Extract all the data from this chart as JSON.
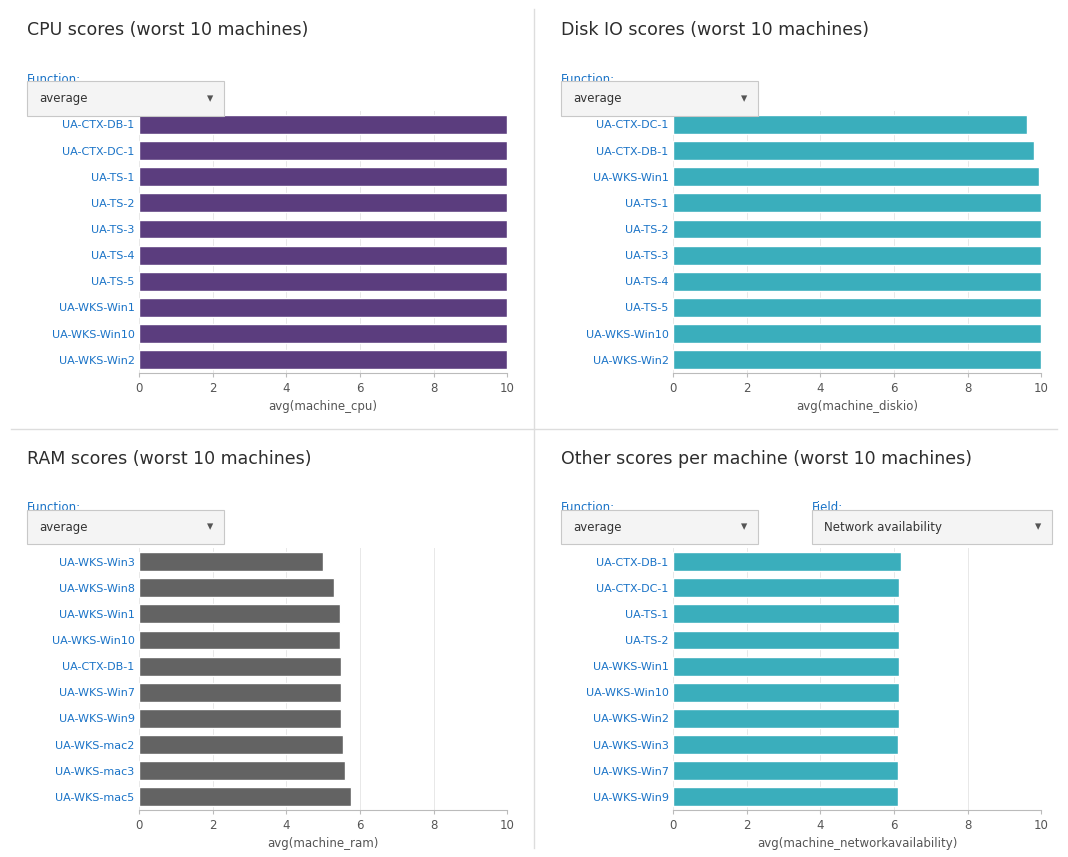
{
  "cpu": {
    "title": "CPU scores (worst 10 machines)",
    "xlabel": "avg(machine_cpu)",
    "function_label": "Function:",
    "dropdown_text": "average",
    "categories": [
      "UA-WKS-Win2",
      "UA-WKS-Win10",
      "UA-WKS-Win1",
      "UA-TS-5",
      "UA-TS-4",
      "UA-TS-3",
      "UA-TS-2",
      "UA-TS-1",
      "UA-CTX-DC-1",
      "UA-CTX-DB-1"
    ],
    "values": [
      10,
      10,
      10,
      10,
      10,
      10,
      10,
      10,
      10,
      10
    ],
    "color": "#5b3d7e",
    "xlim": [
      0,
      10
    ],
    "xticks": [
      0,
      2,
      4,
      6,
      8,
      10
    ]
  },
  "diskio": {
    "title": "Disk IO scores (worst 10 machines)",
    "xlabel": "avg(machine_diskio)",
    "function_label": "Function:",
    "dropdown_text": "average",
    "categories": [
      "UA-WKS-Win2",
      "UA-WKS-Win10",
      "UA-TS-5",
      "UA-TS-4",
      "UA-TS-3",
      "UA-TS-2",
      "UA-TS-1",
      "UA-WKS-Win1",
      "UA-CTX-DB-1",
      "UA-CTX-DC-1"
    ],
    "values": [
      10,
      10,
      10,
      10,
      10,
      10,
      10,
      9.95,
      9.8,
      9.6
    ],
    "color": "#3aaebc",
    "xlim": [
      0,
      10
    ],
    "xticks": [
      0,
      2,
      4,
      6,
      8,
      10
    ]
  },
  "ram": {
    "title": "RAM scores (worst 10 machines)",
    "xlabel": "avg(machine_ram)",
    "function_label": "Function:",
    "dropdown_text": "average",
    "categories": [
      "UA-WKS-mac5",
      "UA-WKS-mac3",
      "UA-WKS-mac2",
      "UA-WKS-Win9",
      "UA-WKS-Win7",
      "UA-CTX-DB-1",
      "UA-WKS-Win10",
      "UA-WKS-Win1",
      "UA-WKS-Win8",
      "UA-WKS-Win3"
    ],
    "values": [
      5.75,
      5.6,
      5.55,
      5.5,
      5.5,
      5.5,
      5.45,
      5.45,
      5.3,
      5.0
    ],
    "color": "#636363",
    "xlim": [
      0,
      10
    ],
    "xticks": [
      0,
      2,
      4,
      6,
      8,
      10
    ]
  },
  "other": {
    "title": "Other scores per machine (worst 10 machines)",
    "xlabel": "avg(machine_networkavailability)",
    "function_label": "Function:",
    "field_label": "Field:",
    "dropdown_text": "average",
    "dropdown_field_text": "Network availability",
    "categories": [
      "UA-WKS-Win9",
      "UA-WKS-Win7",
      "UA-WKS-Win3",
      "UA-WKS-Win2",
      "UA-WKS-Win10",
      "UA-WKS-Win1",
      "UA-TS-2",
      "UA-TS-1",
      "UA-CTX-DC-1",
      "UA-CTX-DB-1"
    ],
    "values": [
      6.1,
      6.1,
      6.1,
      6.15,
      6.15,
      6.15,
      6.15,
      6.15,
      6.15,
      6.2
    ],
    "color": "#3aaebc",
    "xlim": [
      0,
      10
    ],
    "xticks": [
      0,
      2,
      4,
      6,
      8,
      10
    ]
  },
  "bg_color": "#ffffff",
  "title_color": "#2d2d2d",
  "label_color": "#1a73c7",
  "tick_label_color": "#555555",
  "dropdown_bg": "#f4f4f4",
  "dropdown_border": "#c8c8c8",
  "divider_color": "#dddddd"
}
